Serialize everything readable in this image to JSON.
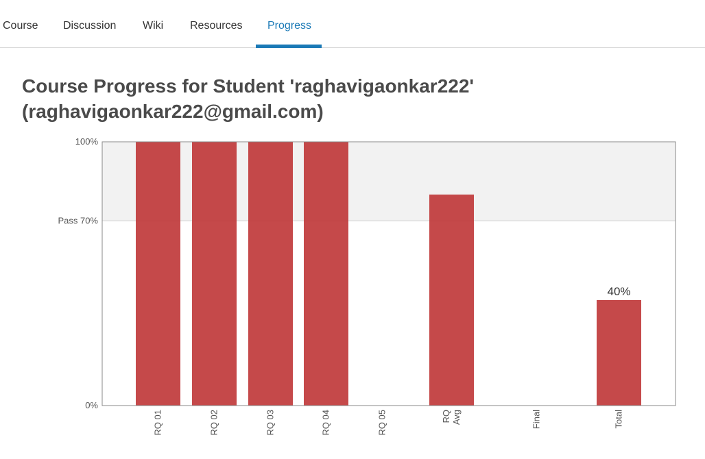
{
  "tabs": [
    {
      "label": "Course",
      "active": false
    },
    {
      "label": "Discussion",
      "active": false
    },
    {
      "label": "Wiki",
      "active": false
    },
    {
      "label": "Resources",
      "active": false
    },
    {
      "label": "Progress",
      "active": true
    }
  ],
  "page": {
    "heading_line1": "Course Progress for Student 'raghavigaonkar222'",
    "heading_line2": "(raghavigaonkar222@gmail.com)"
  },
  "colors": {
    "accent": "#1a79b6",
    "bar": "#c0393b",
    "pass_band": "#f2f2f2"
  },
  "chart_data": {
    "type": "bar",
    "categories": [
      [
        "RQ 01"
      ],
      [
        "RQ 02"
      ],
      [
        "RQ 03"
      ],
      [
        "RQ 04"
      ],
      [
        "RQ 05"
      ],
      [
        "RQ",
        "Avg"
      ],
      [
        "Final"
      ],
      [
        "Total"
      ]
    ],
    "values": [
      100,
      100,
      100,
      100,
      0,
      80,
      0,
      40
    ],
    "data_labels": [
      "",
      "",
      "",
      "",
      "",
      "",
      "",
      "40%"
    ],
    "yticks": [
      {
        "value": 100,
        "label": "100%"
      },
      {
        "value": 70,
        "label": "Pass 70%"
      },
      {
        "value": 0,
        "label": "0%"
      }
    ],
    "ylim": [
      0,
      100
    ],
    "pass_threshold": 70,
    "title": "",
    "xlabel": "",
    "ylabel": ""
  }
}
